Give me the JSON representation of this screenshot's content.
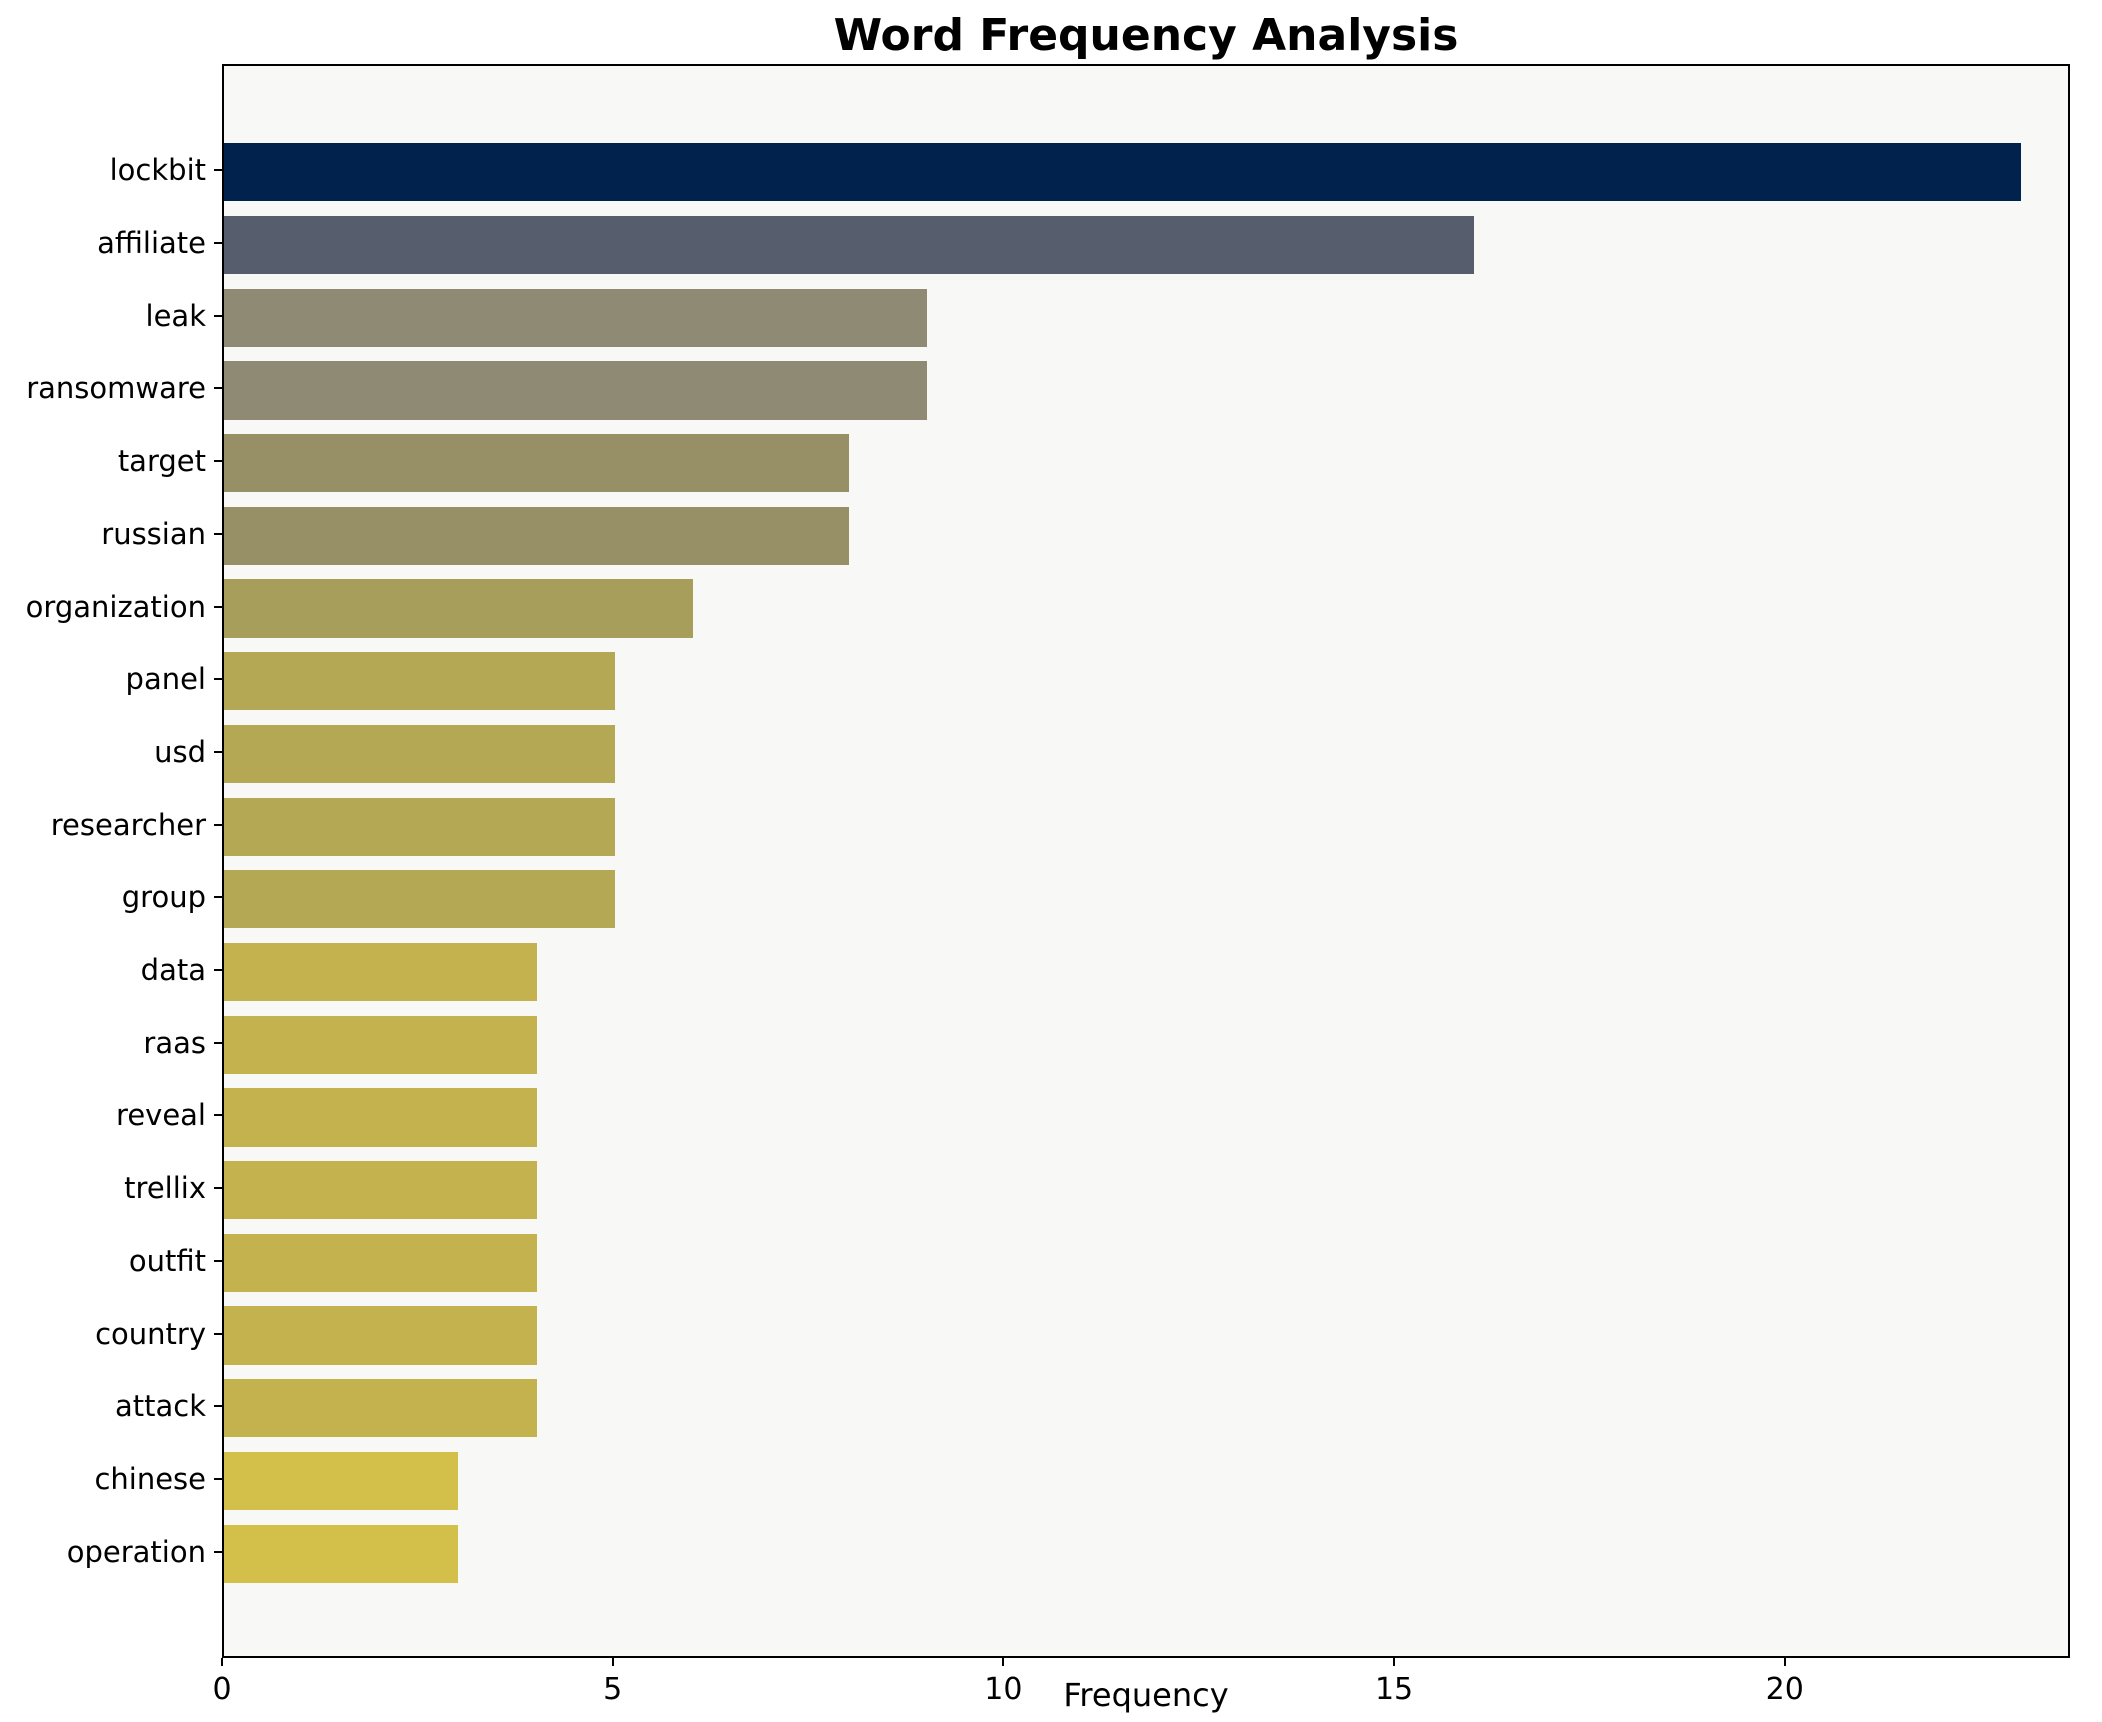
{
  "chart_data": {
    "type": "bar",
    "orientation": "horizontal",
    "title": "Word Frequency Analysis",
    "xlabel": "Frequency",
    "ylabel": "",
    "categories": [
      "lockbit",
      "affiliate",
      "leak",
      "ransomware",
      "target",
      "russian",
      "organization",
      "panel",
      "usd",
      "researcher",
      "group",
      "data",
      "raas",
      "reveal",
      "trellix",
      "outfit",
      "country",
      "attack",
      "chinese",
      "operation"
    ],
    "values": [
      23,
      16,
      9,
      9,
      8,
      8,
      6,
      5,
      5,
      5,
      5,
      4,
      4,
      4,
      4,
      4,
      4,
      4,
      3,
      3
    ],
    "bar_colors": [
      "#02224e",
      "#565d6d",
      "#8e8a74",
      "#8e8a74",
      "#979066",
      "#979066",
      "#a79e5c",
      "#b5a855",
      "#b5a855",
      "#b5a855",
      "#b5a855",
      "#c4b24f",
      "#c4b24f",
      "#c4b24f",
      "#c4b24f",
      "#c4b24f",
      "#c4b24f",
      "#c4b24f",
      "#d3c04a",
      "#d3c04a"
    ],
    "xlim": [
      0,
      23.6
    ],
    "xticks": [
      0,
      5,
      10,
      15,
      20
    ],
    "grid": false,
    "legend": "none",
    "plot_background": "#f8f8f7"
  }
}
